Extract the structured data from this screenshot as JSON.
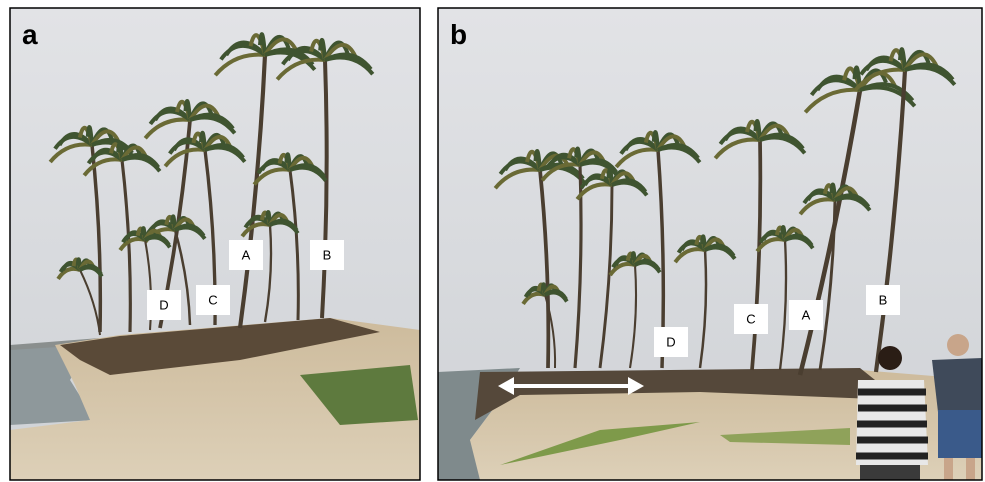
{
  "panels": [
    {
      "label": "a",
      "markers": [
        "A",
        "B",
        "C",
        "D"
      ]
    },
    {
      "label": "b",
      "markers": [
        "A",
        "B",
        "C",
        "D"
      ]
    }
  ]
}
